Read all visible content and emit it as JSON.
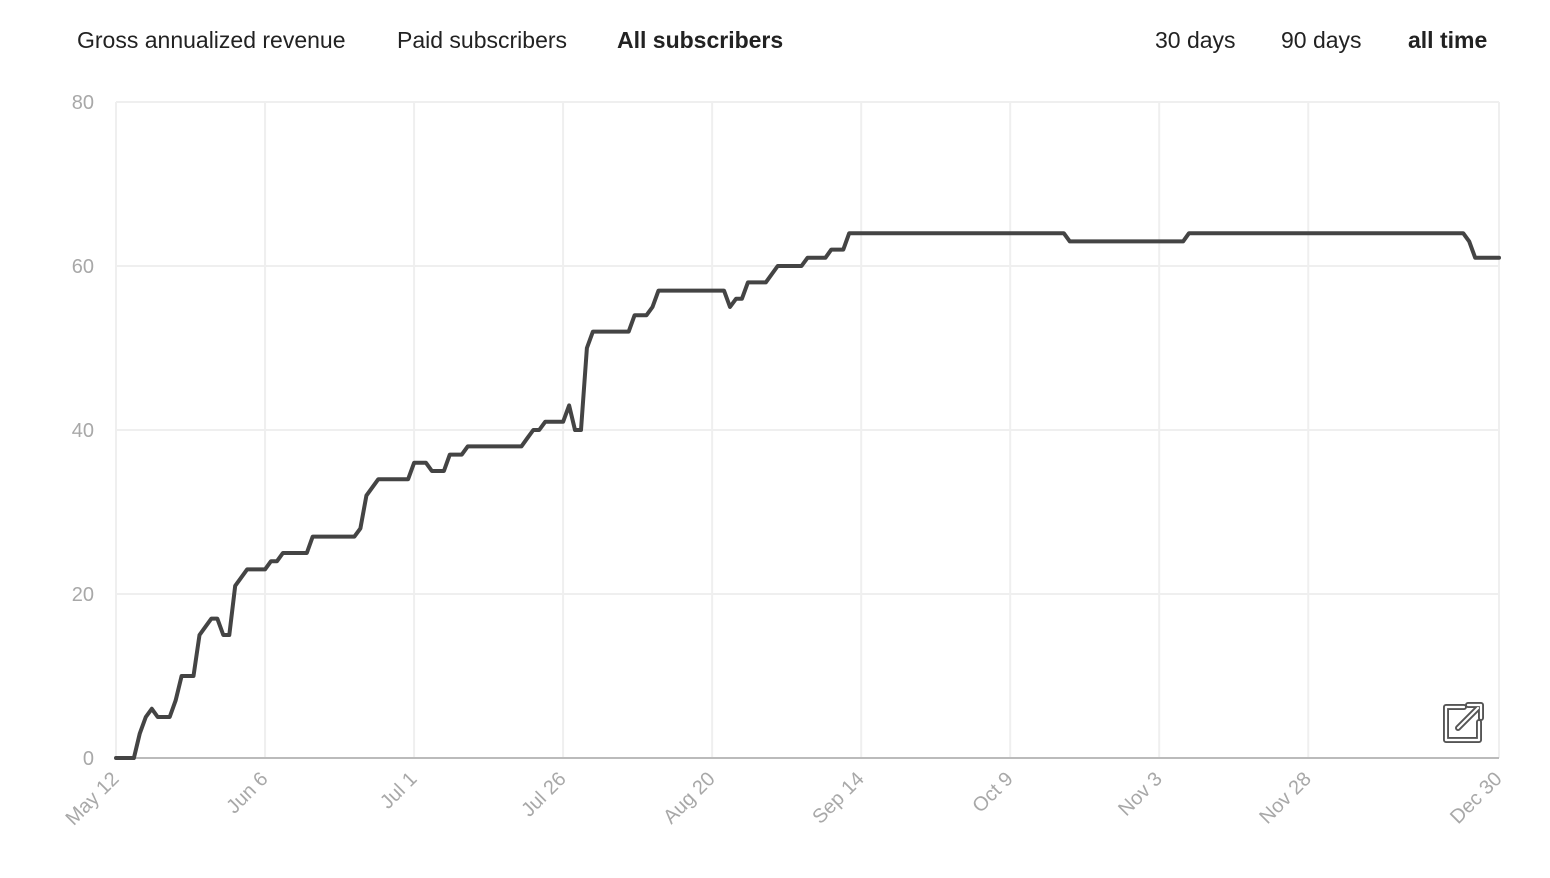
{
  "tabs": {
    "metrics": [
      {
        "label": "Gross annualized revenue",
        "active": false
      },
      {
        "label": "Paid subscribers",
        "active": false
      },
      {
        "label": "All subscribers",
        "active": true
      }
    ],
    "ranges": [
      {
        "label": "30 days",
        "active": false
      },
      {
        "label": "90 days",
        "active": false
      },
      {
        "label": "all time",
        "active": true
      }
    ]
  },
  "export_icon": "external-link-icon",
  "colors": {
    "line": "#444444",
    "grid": "#efefef",
    "axis": "#bbbbbb",
    "tick_text": "#a8a8a8"
  },
  "chart_data": {
    "type": "line",
    "ylim": [
      0,
      80
    ],
    "yticks": [
      0,
      20,
      40,
      60,
      80
    ],
    "xlim": [
      "2023-05-12",
      "2023-12-30"
    ],
    "xtick_labels": [
      {
        "label": "May 12",
        "date": "2023-05-12"
      },
      {
        "label": "Jun 6",
        "date": "2023-06-06"
      },
      {
        "label": "Jul 1",
        "date": "2023-07-01"
      },
      {
        "label": "Jul 26",
        "date": "2023-07-26"
      },
      {
        "label": "Aug 20",
        "date": "2023-08-20"
      },
      {
        "label": "Sep 14",
        "date": "2023-09-14"
      },
      {
        "label": "Oct 9",
        "date": "2023-10-09"
      },
      {
        "label": "Nov 3",
        "date": "2023-11-03"
      },
      {
        "label": "Nov 28",
        "date": "2023-11-28"
      },
      {
        "label": "Dec 30",
        "date": "2023-12-30"
      }
    ],
    "grid": true,
    "series": [
      {
        "color": "#444444",
        "points": [
          [
            "2023-05-12",
            0
          ],
          [
            "2023-05-15",
            0
          ],
          [
            "2023-05-16",
            3
          ],
          [
            "2023-05-17",
            5
          ],
          [
            "2023-05-18",
            6
          ],
          [
            "2023-05-19",
            5
          ],
          [
            "2023-05-21",
            5
          ],
          [
            "2023-05-22",
            7
          ],
          [
            "2023-05-23",
            10
          ],
          [
            "2023-05-25",
            10
          ],
          [
            "2023-05-26",
            15
          ],
          [
            "2023-05-27",
            16
          ],
          [
            "2023-05-28",
            17
          ],
          [
            "2023-05-29",
            17
          ],
          [
            "2023-05-30",
            15
          ],
          [
            "2023-05-31",
            15
          ],
          [
            "2023-06-01",
            21
          ],
          [
            "2023-06-02",
            22
          ],
          [
            "2023-06-03",
            23
          ],
          [
            "2023-06-06",
            23
          ],
          [
            "2023-06-07",
            24
          ],
          [
            "2023-06-08",
            24
          ],
          [
            "2023-06-09",
            25
          ],
          [
            "2023-06-13",
            25
          ],
          [
            "2023-06-14",
            27
          ],
          [
            "2023-06-21",
            27
          ],
          [
            "2023-06-22",
            28
          ],
          [
            "2023-06-23",
            32
          ],
          [
            "2023-06-24",
            33
          ],
          [
            "2023-06-25",
            34
          ],
          [
            "2023-06-30",
            34
          ],
          [
            "2023-07-01",
            36
          ],
          [
            "2023-07-03",
            36
          ],
          [
            "2023-07-04",
            35
          ],
          [
            "2023-07-06",
            35
          ],
          [
            "2023-07-07",
            37
          ],
          [
            "2023-07-09",
            37
          ],
          [
            "2023-07-10",
            38
          ],
          [
            "2023-07-19",
            38
          ],
          [
            "2023-07-20",
            39
          ],
          [
            "2023-07-21",
            40
          ],
          [
            "2023-07-22",
            40
          ],
          [
            "2023-07-23",
            41
          ],
          [
            "2023-07-26",
            41
          ],
          [
            "2023-07-27",
            43
          ],
          [
            "2023-07-28",
            40
          ],
          [
            "2023-07-29",
            40
          ],
          [
            "2023-07-30",
            50
          ],
          [
            "2023-07-31",
            52
          ],
          [
            "2023-08-06",
            52
          ],
          [
            "2023-08-07",
            54
          ],
          [
            "2023-08-09",
            54
          ],
          [
            "2023-08-10",
            55
          ],
          [
            "2023-08-11",
            57
          ],
          [
            "2023-08-22",
            57
          ],
          [
            "2023-08-23",
            55
          ],
          [
            "2023-08-24",
            56
          ],
          [
            "2023-08-25",
            56
          ],
          [
            "2023-08-26",
            58
          ],
          [
            "2023-08-29",
            58
          ],
          [
            "2023-08-31",
            60
          ],
          [
            "2023-09-04",
            60
          ],
          [
            "2023-09-05",
            61
          ],
          [
            "2023-09-08",
            61
          ],
          [
            "2023-09-09",
            62
          ],
          [
            "2023-09-11",
            62
          ],
          [
            "2023-09-12",
            64
          ],
          [
            "2023-10-18",
            64
          ],
          [
            "2023-10-19",
            63
          ],
          [
            "2023-11-07",
            63
          ],
          [
            "2023-11-08",
            64
          ],
          [
            "2023-12-24",
            64
          ],
          [
            "2023-12-25",
            63
          ],
          [
            "2023-12-26",
            61
          ],
          [
            "2023-12-30",
            61
          ]
        ]
      }
    ]
  }
}
